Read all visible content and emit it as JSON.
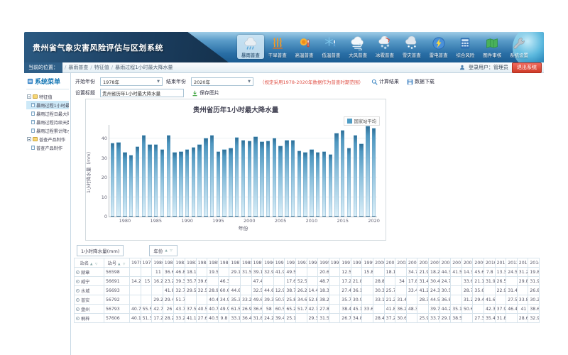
{
  "app": {
    "title": "贵州省气象灾害风险评估与区划系统"
  },
  "nav": {
    "items": [
      {
        "label": "暴雨普查",
        "icon": "rain-icon",
        "active": true
      },
      {
        "label": "干旱普查",
        "icon": "drought-icon",
        "active": false
      },
      {
        "label": "高温普查",
        "icon": "high-temp-icon",
        "active": false
      },
      {
        "label": "低温普查",
        "icon": "low-temp-icon",
        "active": false
      },
      {
        "label": "大风普查",
        "icon": "wind-icon",
        "active": false
      },
      {
        "label": "冰雹普查",
        "icon": "hail-icon",
        "active": false
      },
      {
        "label": "雪灾普查",
        "icon": "snow-icon",
        "active": false
      },
      {
        "label": "雷电普查",
        "icon": "lightning-icon",
        "active": false
      },
      {
        "label": "综合风险",
        "icon": "risk-icon",
        "active": false
      },
      {
        "label": "图件审核",
        "icon": "map-audit-icon",
        "active": false
      },
      {
        "label": "系统设置",
        "icon": "settings-icon",
        "active": false
      }
    ]
  },
  "breadcrumb": {
    "location_label": "当前的位置：",
    "items": [
      "暴雨普查",
      "特征值",
      "暴雨过程1小时最大降水量"
    ]
  },
  "user": {
    "label": "登录用户：管理员",
    "logout_label": "退出系统"
  },
  "sidebar": {
    "title": "系统菜单",
    "tree": [
      {
        "label": "特征值",
        "type": "node",
        "selected": false
      },
      {
        "label": "暴雨过程1小时最大降水量",
        "type": "leaf",
        "selected": true
      },
      {
        "label": "暴雨过程日最大降水量",
        "type": "leaf",
        "selected": false
      },
      {
        "label": "暴雨过程持续天数",
        "type": "leaf",
        "selected": false
      },
      {
        "label": "暴雨过程累计降水量",
        "type": "leaf",
        "selected": false
      },
      {
        "label": "普查产品制作",
        "type": "node",
        "selected": false
      },
      {
        "label": "普查产品制作",
        "type": "leaf",
        "selected": false
      }
    ]
  },
  "filters": {
    "start_label": "开始年份",
    "start_value": "1978年",
    "end_label": "结束年份",
    "end_value": "2020年",
    "hint": "（规定采用1978-2020年数据作为普查时期范围）",
    "calc_label": "计算结果",
    "download_label": "数据下载",
    "title_label": "设置标题",
    "title_value": "贵州省历年1小时最大降水量",
    "save_label": "保存图片"
  },
  "chart_data": {
    "type": "bar",
    "title": "贵州省历年1小时最大降水量",
    "legend": [
      "国家站平均"
    ],
    "legend_position": "top-right",
    "xlabel": "年份",
    "ylabel": "1小时降水量（mm）",
    "ylim": [
      0,
      47
    ],
    "yticks": [
      0,
      10,
      20,
      30,
      40
    ],
    "grid": true,
    "bar_color": "#4f9cc4",
    "years": [
      1978,
      1979,
      1980,
      1981,
      1982,
      1983,
      1984,
      1985,
      1986,
      1987,
      1988,
      1989,
      1990,
      1991,
      1992,
      1993,
      1994,
      1995,
      1996,
      1997,
      1998,
      1999,
      2000,
      2001,
      2002,
      2003,
      2004,
      2005,
      2006,
      2007,
      2008,
      2009,
      2010,
      2011,
      2012,
      2013,
      2014,
      2015,
      2016,
      2017,
      2018,
      2019,
      2020
    ],
    "values": [
      37.8,
      38.4,
      33.2,
      31.6,
      35.9,
      41.9,
      37.1,
      37.0,
      34.7,
      41.9,
      33.1,
      33.4,
      34.6,
      35.8,
      37.2,
      40.6,
      41.8,
      33.5,
      34.8,
      35.2,
      40.8,
      39.4,
      38.9,
      41.2,
      38.6,
      38.9,
      40.3,
      36.4,
      39.5,
      39.3,
      33.8,
      33.2,
      34.5,
      33.0,
      33.5,
      32.2,
      43.0,
      44.5,
      35.5,
      42.0,
      37.5,
      46.5,
      45.5
    ]
  },
  "table": {
    "filter_field": "1小时降水量(mm)",
    "filter_sort": "年份",
    "col_station": "站名",
    "col_id": "站号",
    "years": [
      1978,
      1979,
      1980,
      1981,
      1982,
      1983,
      1984,
      1985,
      1986,
      1987,
      1988,
      1989,
      1990,
      1991,
      1992,
      1993,
      1994,
      1995,
      1996,
      1997,
      1998,
      1999,
      2000,
      2001,
      2002,
      2003,
      2004,
      2005,
      2006,
      2007,
      2008,
      2009,
      2010,
      2011,
      2012,
      2013,
      2014
    ],
    "rows": [
      {
        "name": "赫章",
        "id": "56598",
        "values": [
          "",
          "",
          "11",
          "36.6",
          "46.8",
          "18.1",
          "",
          "19.5",
          "",
          "29.1",
          "31.5",
          "39.1",
          "32.9",
          "41.9",
          "49.5",
          "",
          "",
          "20.6",
          "",
          "12.5",
          "",
          "15.8",
          "",
          "18.1",
          "",
          "34.7",
          "21.9",
          "18.2",
          "44.3",
          "41.5",
          "14.3",
          "45.6",
          "7.8",
          "13.3",
          "24.5",
          "31.2",
          "19.8"
        ]
      },
      {
        "name": "威宁",
        "id": "56691",
        "values": [
          "14.2",
          "15",
          "16.2",
          "23.2",
          "39.3",
          "35.7",
          "39.6",
          "",
          "46.3",
          "",
          "",
          "47.4",
          "",
          "",
          "17.6",
          "52.5",
          "",
          "48.7",
          "",
          "17.2",
          "21.8",
          "",
          "28.8",
          "",
          "34",
          "17.8",
          "31.4",
          "30.4",
          "24.7",
          "",
          "33.6",
          "21.1",
          "31.9",
          "26.5",
          "",
          "29.8",
          "31.9"
        ]
      },
      {
        "name": "水城",
        "id": "56693",
        "values": [
          "",
          "",
          "",
          "41.8",
          "32.7",
          "29.5",
          "32.5",
          "28.9",
          "60.6",
          "44.6",
          "",
          "32.5",
          "44.6",
          "12.9",
          "38.7",
          "26.2",
          "14.4",
          "18.3",
          "",
          "27.4",
          "36.1",
          "",
          "30.3",
          "25.7",
          "",
          "33.4",
          "41.2",
          "24.3",
          "30.5",
          "",
          "28.7",
          "35.6",
          "",
          "22.9",
          "31.4",
          "",
          "26.8"
        ]
      },
      {
        "name": "普安",
        "id": "56792",
        "values": [
          "",
          "",
          "29.2",
          "29.4",
          "51.7",
          "",
          "",
          "40.4",
          "34.9",
          "35.3",
          "33.2",
          "49.6",
          "39.3",
          "50.5",
          "25.8",
          "34.6",
          "52.8",
          "38.2",
          "",
          "35.7",
          "30.9",
          "",
          "33.1",
          "21.2",
          "31.4",
          "",
          "28.3",
          "44.5",
          "36.8",
          "",
          "31.2",
          "29.4",
          "41.6",
          "",
          "27.5",
          "33.8",
          "30.2"
        ]
      },
      {
        "name": "盘州",
        "id": "56793",
        "values": [
          "40.7",
          "55.5",
          "42.7",
          "26",
          "43.7",
          "37.5",
          "40.5",
          "40.7",
          "49.9",
          "61.5",
          "26.9",
          "36.6",
          "58",
          "60.5",
          "65.2",
          "51.7",
          "42.7",
          "27.8",
          "",
          "38.4",
          "45.1",
          "33.6",
          "",
          "41.8",
          "36.2",
          "48.3",
          "",
          "39.7",
          "44.2",
          "35.1",
          "50.6",
          "",
          "42.3",
          "37.9",
          "46.4",
          "41",
          "38.6"
        ]
      },
      {
        "name": "桐梓",
        "id": "57606",
        "values": [
          "40.1",
          "51.3",
          "17.2",
          "28.2",
          "33.2",
          "41.1",
          "27.6",
          "40.5",
          "9.8",
          "33.1",
          "36.4",
          "31.8",
          "24.2",
          "39.4",
          "25.1",
          "",
          "29.3",
          "31.5",
          "",
          "26.7",
          "34.8",
          "",
          "28.4",
          "37.2",
          "30.6",
          "",
          "25.9",
          "33.7",
          "29.1",
          "38.5",
          "",
          "27.3",
          "35.4",
          "31.8",
          "",
          "28.6",
          "32.9"
        ]
      }
    ]
  }
}
